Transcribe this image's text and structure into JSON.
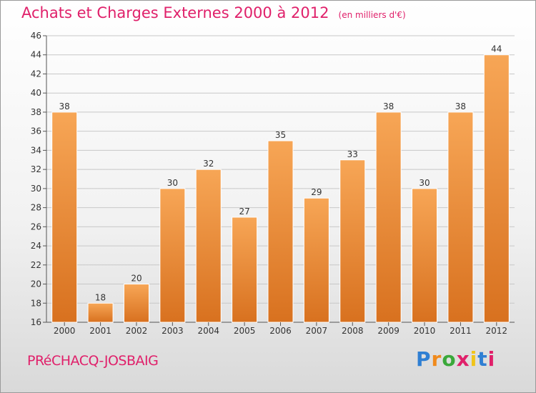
{
  "header": {
    "title": "Achats et Charges Externes 2000 à 2012",
    "unit": "(en milliers d'€)"
  },
  "footer": {
    "commune": "PRéCHACQ-JOSBAIG",
    "logo_letters": [
      "P",
      "r",
      "o",
      "x",
      "i",
      "t",
      "i"
    ],
    "logo_colors": [
      "#2f7fd3",
      "#f08a1c",
      "#3aa83a",
      "#e0206a",
      "#f0c419",
      "#2f7fd3",
      "#e0206a"
    ]
  },
  "colors": {
    "bar_light": "#f7a656",
    "bar_dark": "#d8711f",
    "title": "#e0206a",
    "grid": "#c8c8c8"
  },
  "chart_data": {
    "type": "bar",
    "categories": [
      "2000",
      "2001",
      "2002",
      "2003",
      "2004",
      "2005",
      "2006",
      "2007",
      "2008",
      "2009",
      "2010",
      "2011",
      "2012"
    ],
    "values": [
      38,
      18,
      20,
      30,
      32,
      27,
      35,
      29,
      33,
      38,
      30,
      38,
      44
    ],
    "ylim": [
      16,
      46
    ],
    "yticks": [
      16,
      18,
      20,
      22,
      24,
      26,
      28,
      30,
      32,
      34,
      36,
      38,
      40,
      42,
      44,
      46
    ],
    "grid": true,
    "data_labels": true
  }
}
